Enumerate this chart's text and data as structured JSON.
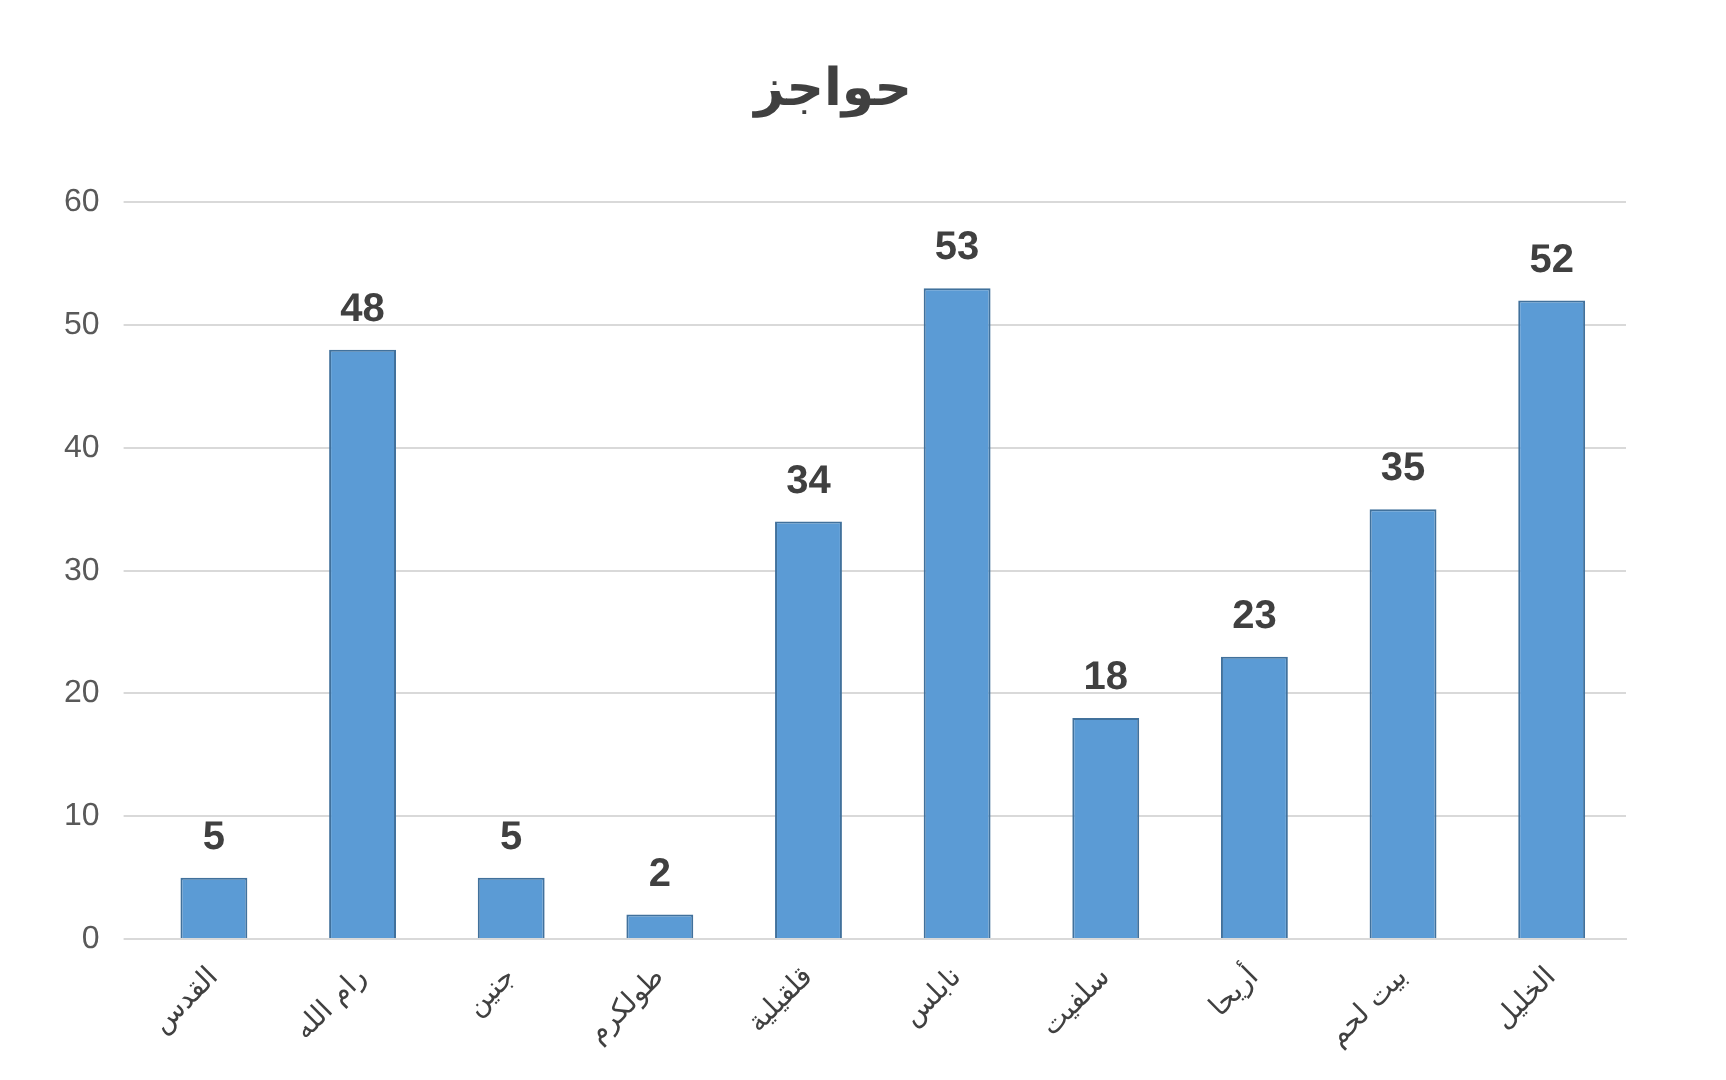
{
  "chart_data": {
    "type": "bar",
    "title": "حواجز",
    "categories": [
      "القدس",
      "رام الله",
      "جنين",
      "طولكرم",
      "قلقيلية",
      "نابلس",
      "سلفيت",
      "أريحا",
      "بيت لحم",
      "الخليل"
    ],
    "values": [
      5,
      48,
      5,
      2,
      34,
      53,
      18,
      23,
      35,
      52
    ],
    "color": "#5b9bd5",
    "ylim": [
      0,
      60
    ],
    "yticks": [
      0,
      10,
      20,
      30,
      40,
      50,
      60
    ],
    "grid": "y",
    "data_labels": true,
    "legend": false
  }
}
